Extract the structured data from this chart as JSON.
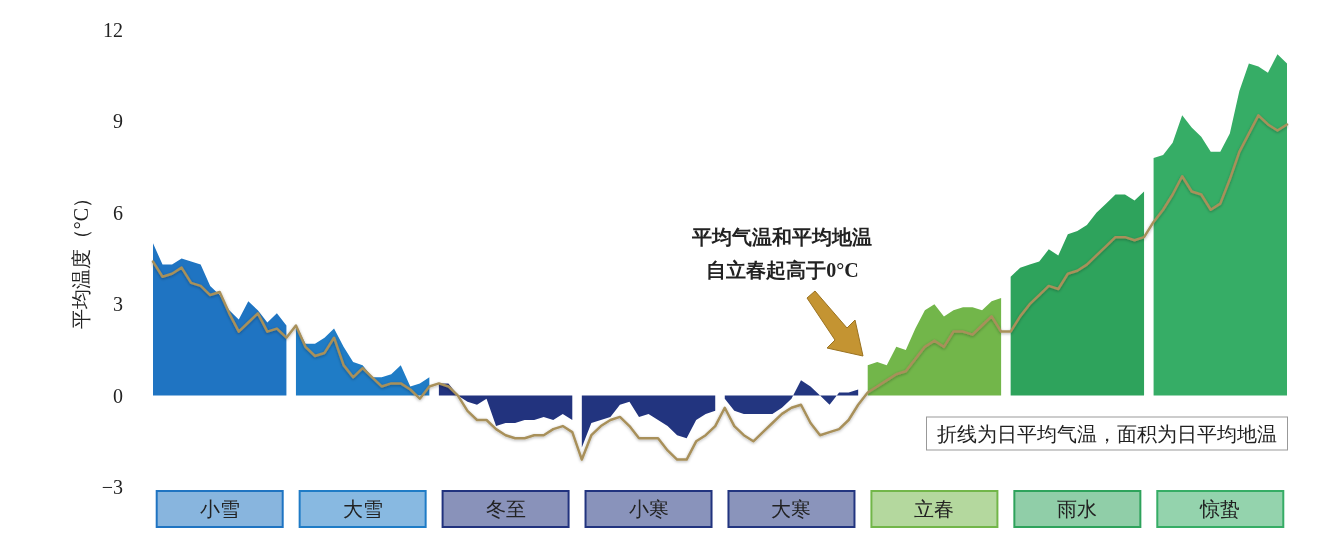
{
  "chart_data": {
    "type": "area",
    "ylabel": "平均温度（°C）",
    "ylim": [
      -3,
      12
    ],
    "yticks": [
      {
        "value": -3,
        "label": "−3"
      },
      0,
      3,
      6,
      9,
      12
    ],
    "categories": [
      null,
      null,
      null,
      null,
      null,
      null,
      null,
      "小雪",
      null,
      null,
      null,
      null,
      null,
      null,
      null,
      null,
      null,
      null,
      null,
      null,
      null,
      null,
      "大雪",
      null,
      null,
      null,
      null,
      null,
      null,
      null,
      null,
      null,
      null,
      null,
      null,
      null,
      null,
      "冬至",
      null,
      null,
      null,
      null,
      null,
      null,
      null,
      null,
      null,
      null,
      null,
      null,
      null,
      null,
      "小寒",
      null,
      null,
      null,
      null,
      null,
      null,
      null,
      null,
      null,
      null,
      null,
      null,
      null,
      null,
      "大寒",
      null,
      null,
      null,
      null,
      null,
      null,
      null,
      null,
      null,
      null,
      null,
      null,
      null,
      null,
      "立春",
      null,
      null,
      null,
      null,
      null,
      null,
      null,
      null,
      null,
      null,
      null,
      null,
      null,
      null,
      "雨水",
      null,
      null,
      null,
      null,
      null,
      null,
      null,
      null,
      null,
      null,
      null,
      null,
      null,
      null,
      "惊蛰",
      null,
      null,
      null,
      null,
      null,
      null,
      null
    ],
    "grid": false,
    "marker": "none",
    "annotations": [
      "平均气温和平均地温",
      "自立春起高于0°C",
      "折线为日平均气温，面积为日平均地温"
    ],
    "series": [
      {
        "color": "#1f74c2",
        "values": [
          5.0,
          4.3,
          4.3,
          4.5,
          4.4,
          4.3,
          3.6,
          3.3,
          2.8,
          2.5,
          3.1,
          2.8,
          2.4,
          2.7,
          2.3,
          null,
          null,
          null,
          null,
          null,
          null,
          null,
          null,
          null,
          null,
          null,
          null,
          null,
          null,
          null,
          null,
          null,
          null,
          null,
          null,
          null,
          null,
          null,
          null,
          null,
          null,
          null,
          null,
          null,
          null,
          null,
          null,
          null,
          null,
          null,
          null,
          null,
          null,
          null,
          null,
          null,
          null,
          null,
          null,
          null,
          null,
          null,
          null,
          null,
          null,
          null,
          null,
          null,
          null,
          null,
          null,
          null,
          null,
          null,
          null,
          null,
          null,
          null,
          null,
          null,
          null,
          null,
          null,
          null,
          null,
          null,
          null,
          null,
          null,
          null,
          null,
          null,
          null,
          null,
          null,
          null,
          null,
          null,
          null,
          null,
          null,
          null,
          null,
          null,
          null,
          null,
          null,
          null,
          null,
          null,
          null,
          null,
          null,
          null,
          null,
          null,
          null,
          null,
          null,
          null
        ]
      },
      {
        "color": "#1f7cc6",
        "values": [
          null,
          null,
          null,
          null,
          null,
          null,
          null,
          null,
          null,
          null,
          null,
          null,
          null,
          null,
          null,
          2.3,
          1.7,
          1.7,
          1.9,
          2.2,
          1.6,
          1.1,
          1.0,
          0.6,
          0.6,
          0.7,
          1.0,
          0.3,
          0.4,
          0.6,
          null,
          null,
          null,
          null,
          null,
          null,
          null,
          null,
          null,
          null,
          null,
          null,
          null,
          null,
          null,
          null,
          null,
          null,
          null,
          null,
          null,
          null,
          null,
          null,
          null,
          null,
          null,
          null,
          null,
          null,
          null,
          null,
          null,
          null,
          null,
          null,
          null,
          null,
          null,
          null,
          null,
          null,
          null,
          null,
          null,
          null,
          null,
          null,
          null,
          null,
          null,
          null,
          null,
          null,
          null,
          null,
          null,
          null,
          null,
          null,
          null,
          null,
          null,
          null,
          null,
          null,
          null,
          null,
          null,
          null,
          null,
          null,
          null,
          null,
          null,
          null,
          null,
          null,
          null,
          null,
          null,
          null,
          null,
          null,
          null,
          null,
          null,
          null,
          null,
          null
        ]
      },
      {
        "color": "#22337e",
        "values": [
          null,
          null,
          null,
          null,
          null,
          null,
          null,
          null,
          null,
          null,
          null,
          null,
          null,
          null,
          null,
          null,
          null,
          null,
          null,
          null,
          null,
          null,
          null,
          null,
          null,
          null,
          null,
          null,
          null,
          null,
          0.4,
          0.4,
          0.0,
          -0.2,
          -0.3,
          -0.1,
          -1.0,
          -0.9,
          -0.9,
          -0.8,
          -0.8,
          -0.7,
          -0.8,
          -0.6,
          -0.8,
          null,
          null,
          null,
          null,
          null,
          null,
          null,
          null,
          null,
          null,
          null,
          null,
          null,
          null,
          null,
          null,
          null,
          null,
          null,
          null,
          null,
          null,
          null,
          null,
          null,
          null,
          null,
          null,
          null,
          null,
          null,
          null,
          null,
          null,
          null,
          null,
          null,
          null,
          null,
          null,
          null,
          null,
          null,
          null,
          null,
          null,
          null,
          null,
          null,
          null,
          null,
          null,
          null,
          null,
          null,
          null,
          null,
          null,
          null,
          null,
          null,
          null,
          null,
          null,
          null,
          null,
          null,
          null,
          null,
          null,
          null,
          null,
          null,
          null,
          null
        ]
      },
      {
        "color": "#22347f",
        "values": [
          null,
          null,
          null,
          null,
          null,
          null,
          null,
          null,
          null,
          null,
          null,
          null,
          null,
          null,
          null,
          null,
          null,
          null,
          null,
          null,
          null,
          null,
          null,
          null,
          null,
          null,
          null,
          null,
          null,
          null,
          null,
          null,
          null,
          null,
          null,
          null,
          null,
          null,
          null,
          null,
          null,
          null,
          null,
          null,
          null,
          -1.7,
          -0.9,
          -0.8,
          -0.7,
          -0.3,
          -0.2,
          -0.7,
          -0.6,
          -0.8,
          -1.0,
          -1.3,
          -1.4,
          -0.8,
          -0.6,
          -0.5,
          null,
          null,
          null,
          null,
          null,
          null,
          null,
          null,
          null,
          null,
          null,
          null,
          null,
          null,
          null,
          null,
          null,
          null,
          null,
          null,
          null,
          null,
          null,
          null,
          null,
          null,
          null,
          null,
          null,
          null,
          null,
          null,
          null,
          null,
          null,
          null,
          null,
          null,
          null,
          null,
          null,
          null,
          null,
          null,
          null,
          null,
          null,
          null,
          null,
          null,
          null,
          null,
          null,
          null,
          null,
          null,
          null,
          null,
          null,
          null
        ]
      },
      {
        "color": "#233680",
        "values": [
          null,
          null,
          null,
          null,
          null,
          null,
          null,
          null,
          null,
          null,
          null,
          null,
          null,
          null,
          null,
          null,
          null,
          null,
          null,
          null,
          null,
          null,
          null,
          null,
          null,
          null,
          null,
          null,
          null,
          null,
          null,
          null,
          null,
          null,
          null,
          null,
          null,
          null,
          null,
          null,
          null,
          null,
          null,
          null,
          null,
          null,
          null,
          null,
          null,
          null,
          null,
          null,
          null,
          null,
          null,
          null,
          null,
          null,
          null,
          null,
          -0.1,
          -0.5,
          -0.6,
          -0.6,
          -0.6,
          -0.6,
          -0.4,
          -0.1,
          0.5,
          0.3,
          0.0,
          -0.3,
          0.1,
          0.1,
          0.2,
          null,
          null,
          null,
          null,
          null,
          null,
          null,
          null,
          null,
          null,
          null,
          null,
          null,
          null,
          null,
          null,
          null,
          null,
          null,
          null,
          null,
          null,
          null,
          null,
          null,
          null,
          null,
          null,
          null,
          null,
          null,
          null,
          null,
          null,
          null,
          null,
          null,
          null,
          null,
          null,
          null,
          null,
          null,
          null,
          null
        ]
      },
      {
        "color": "#72b64a",
        "values": [
          null,
          null,
          null,
          null,
          null,
          null,
          null,
          null,
          null,
          null,
          null,
          null,
          null,
          null,
          null,
          null,
          null,
          null,
          null,
          null,
          null,
          null,
          null,
          null,
          null,
          null,
          null,
          null,
          null,
          null,
          null,
          null,
          null,
          null,
          null,
          null,
          null,
          null,
          null,
          null,
          null,
          null,
          null,
          null,
          null,
          null,
          null,
          null,
          null,
          null,
          null,
          null,
          null,
          null,
          null,
          null,
          null,
          null,
          null,
          null,
          null,
          null,
          null,
          null,
          null,
          null,
          null,
          null,
          null,
          null,
          null,
          null,
          null,
          null,
          null,
          1.0,
          1.1,
          1.0,
          1.6,
          1.5,
          2.2,
          2.8,
          3.0,
          2.6,
          2.8,
          2.9,
          2.9,
          2.8,
          3.1,
          3.2,
          null,
          null,
          null,
          null,
          null,
          null,
          null,
          null,
          null,
          null,
          null,
          null,
          null,
          null,
          null,
          null,
          null,
          null,
          null,
          null,
          null,
          null,
          null,
          null,
          null,
          null,
          null,
          null,
          null,
          null
        ]
      },
      {
        "color": "#2ea35c",
        "values": [
          null,
          null,
          null,
          null,
          null,
          null,
          null,
          null,
          null,
          null,
          null,
          null,
          null,
          null,
          null,
          null,
          null,
          null,
          null,
          null,
          null,
          null,
          null,
          null,
          null,
          null,
          null,
          null,
          null,
          null,
          null,
          null,
          null,
          null,
          null,
          null,
          null,
          null,
          null,
          null,
          null,
          null,
          null,
          null,
          null,
          null,
          null,
          null,
          null,
          null,
          null,
          null,
          null,
          null,
          null,
          null,
          null,
          null,
          null,
          null,
          null,
          null,
          null,
          null,
          null,
          null,
          null,
          null,
          null,
          null,
          null,
          null,
          null,
          null,
          null,
          null,
          null,
          null,
          null,
          null,
          null,
          null,
          null,
          null,
          null,
          null,
          null,
          null,
          null,
          null,
          3.9,
          4.2,
          4.3,
          4.4,
          4.8,
          4.6,
          5.3,
          5.4,
          5.6,
          6.0,
          6.3,
          6.6,
          6.6,
          6.4,
          6.7,
          null,
          null,
          null,
          null,
          null,
          null,
          null,
          null,
          null,
          null,
          null,
          null,
          null,
          null,
          null
        ]
      },
      {
        "color": "#36ad66",
        "values": [
          null,
          null,
          null,
          null,
          null,
          null,
          null,
          null,
          null,
          null,
          null,
          null,
          null,
          null,
          null,
          null,
          null,
          null,
          null,
          null,
          null,
          null,
          null,
          null,
          null,
          null,
          null,
          null,
          null,
          null,
          null,
          null,
          null,
          null,
          null,
          null,
          null,
          null,
          null,
          null,
          null,
          null,
          null,
          null,
          null,
          null,
          null,
          null,
          null,
          null,
          null,
          null,
          null,
          null,
          null,
          null,
          null,
          null,
          null,
          null,
          null,
          null,
          null,
          null,
          null,
          null,
          null,
          null,
          null,
          null,
          null,
          null,
          null,
          null,
          null,
          null,
          null,
          null,
          null,
          null,
          null,
          null,
          null,
          null,
          null,
          null,
          null,
          null,
          null,
          null,
          null,
          null,
          null,
          null,
          null,
          null,
          null,
          null,
          null,
          null,
          null,
          null,
          null,
          null,
          null,
          7.8,
          7.9,
          8.3,
          9.2,
          8.8,
          8.5,
          8.0,
          8.0,
          8.6,
          10.0,
          10.9,
          10.8,
          10.6,
          11.2,
          10.9
        ]
      },
      {
        "type": "line",
        "color": "#a8905a",
        "line_style": "solid",
        "values": [
          4.4,
          3.9,
          4.0,
          4.2,
          3.7,
          3.6,
          3.3,
          3.4,
          2.7,
          2.1,
          2.4,
          2.7,
          2.1,
          2.2,
          1.9,
          2.3,
          1.6,
          1.3,
          1.4,
          1.9,
          1.0,
          0.6,
          0.9,
          0.6,
          0.3,
          0.4,
          0.4,
          0.2,
          -0.1,
          0.3,
          0.4,
          0.3,
          0.0,
          -0.5,
          -0.8,
          -0.8,
          -1.1,
          -1.3,
          -1.4,
          -1.4,
          -1.3,
          -1.3,
          -1.1,
          -1.0,
          -1.2,
          -2.1,
          -1.3,
          -1.0,
          -0.8,
          -0.7,
          -1.0,
          -1.4,
          -1.4,
          -1.4,
          -1.8,
          -2.1,
          -2.1,
          -1.5,
          -1.3,
          -1.0,
          -0.4,
          -1.0,
          -1.3,
          -1.5,
          -1.2,
          -0.9,
          -0.6,
          -0.4,
          -0.3,
          -0.9,
          -1.3,
          -1.2,
          -1.1,
          -0.8,
          -0.3,
          0.1,
          0.3,
          0.5,
          0.7,
          0.8,
          1.2,
          1.6,
          1.8,
          1.6,
          2.1,
          2.1,
          2.0,
          2.3,
          2.6,
          2.1,
          2.1,
          2.6,
          3.0,
          3.3,
          3.6,
          3.5,
          4.0,
          4.1,
          4.3,
          4.6,
          4.9,
          5.2,
          5.2,
          5.1,
          5.2,
          5.7,
          6.1,
          6.6,
          7.2,
          6.7,
          6.6,
          6.1,
          6.3,
          7.1,
          8.0,
          8.6,
          9.2,
          8.9,
          8.7,
          8.9
        ]
      }
    ]
  }
}
